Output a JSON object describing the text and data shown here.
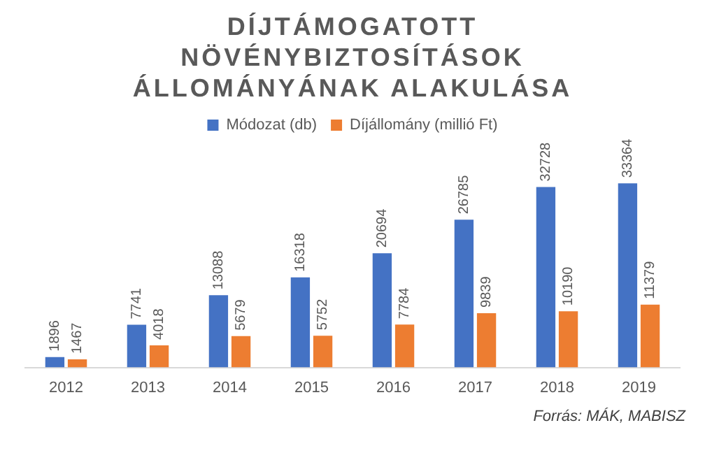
{
  "chart_data": {
    "type": "bar",
    "title": "DÍJTÁMOGATOTT NÖVÉNYBIZTOSÍTÁSOK ÁLLOMÁNYÁNAK ALAKULÁSA",
    "categories": [
      "2012",
      "2013",
      "2014",
      "2015",
      "2016",
      "2017",
      "2018",
      "2019"
    ],
    "series": [
      {
        "name": "Módozat (db)",
        "color": "#4472c4",
        "values": [
          1896,
          7741,
          13088,
          16318,
          20694,
          26785,
          32728,
          33364
        ]
      },
      {
        "name": "Díjállomány (millió Ft)",
        "color": "#ed7d31",
        "values": [
          1467,
          4018,
          5679,
          5752,
          7784,
          9839,
          10190,
          11379
        ]
      }
    ],
    "data_labels": true,
    "legend": "top",
    "grid": false,
    "annotations": [
      "Forrás: MÁK, MABISZ"
    ]
  }
}
